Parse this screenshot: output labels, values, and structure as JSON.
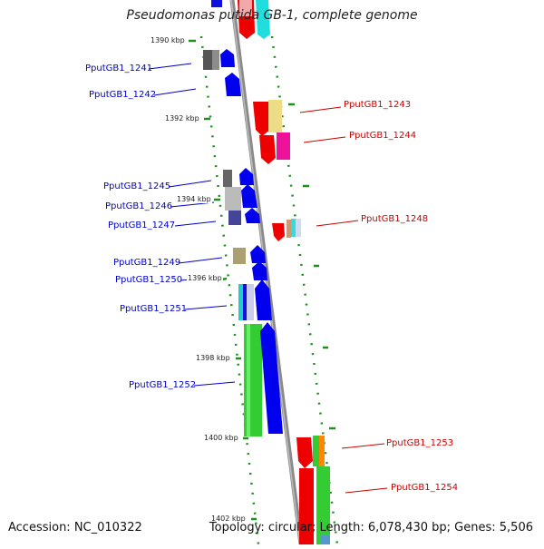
{
  "title": "Pseudomonas putida GB-1, complete genome",
  "footer": {
    "accession": "Accession: NC_010322",
    "summary": "Topology: circular; Length: 6,078,430 bp; Genes: 5,506"
  },
  "scale_labels": [
    "1390 kbp",
    "1392 kbp",
    "1394 kbp",
    "1396 kbp",
    "1398 kbp",
    "1400 kbp",
    "1402 kbp"
  ],
  "genes_left": [
    {
      "label": "PputGB1_1241",
      "color": "#0000cc"
    },
    {
      "label": "PputGB1_1242",
      "color": "#0000cc"
    },
    {
      "label": "PputGB1_1245",
      "color": "#0000cc"
    },
    {
      "label": "PputGB1_1246",
      "color": "#0000cc"
    },
    {
      "label": "PputGB1_1247",
      "color": "#0000cc"
    },
    {
      "label": "PputGB1_1249",
      "color": "#0000cc"
    },
    {
      "label": "PputGB1_1250",
      "color": "#0000cc"
    },
    {
      "label": "PputGB1_1251",
      "color": "#0000cc"
    },
    {
      "label": "PputGB1_1252",
      "color": "#0000cc"
    }
  ],
  "genes_right": [
    {
      "label": "PputGB1_1243",
      "color": "#cc0000"
    },
    {
      "label": "PputGB1_1244",
      "color": "#cc0000"
    },
    {
      "label": "PputGB1_1248",
      "color": "#cc0000"
    },
    {
      "label": "PputGB1_1253",
      "color": "#cc0000"
    },
    {
      "label": "PputGB1_1254",
      "color": "#cc0000"
    }
  ],
  "colors": {
    "backbone": "#8a8a8a",
    "dots": "#1f8f1f",
    "forward_strand": "#0000ee",
    "reverse_strand": "#ee0000"
  }
}
